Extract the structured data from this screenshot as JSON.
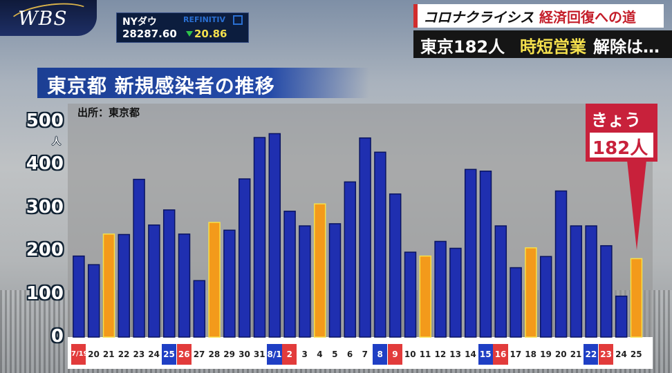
{
  "broadcast": {
    "logo": "WBS",
    "market_name": "NYダウ",
    "market_source": "REFINITIV",
    "market_value": "28287.60",
    "market_change": "20.86",
    "series_title": "コロナクライシス",
    "series_subtitle": "経済回復への道",
    "headline_part1": "東京182人",
    "headline_part2": "時短営業",
    "headline_part3": "解除は…"
  },
  "colors": {
    "bar_blue": "#1f2fb0",
    "bar_orange": "#f39a1b",
    "weekend_red": "#e23b3b",
    "weekend_blue": "#1f3fc4",
    "callout": "#c8213b"
  },
  "callout": {
    "line1": "きょう",
    "line2": "182人"
  },
  "chart_data": {
    "type": "bar",
    "title": "東京都 新規感染者の推移",
    "source": "出所：東京都",
    "ylabel_unit": "人",
    "ylim": [
      0,
      500
    ],
    "yticks": [
      "0",
      "100",
      "200",
      "300",
      "400",
      "500"
    ],
    "grid": false,
    "categories": [
      "7/19",
      "20",
      "21",
      "22",
      "23",
      "24",
      "25",
      "26",
      "27",
      "28",
      "29",
      "30",
      "31",
      "8/1",
      "2",
      "3",
      "4",
      "5",
      "6",
      "7",
      "8",
      "9",
      "10",
      "11",
      "12",
      "13",
      "14",
      "15",
      "16",
      "17",
      "18",
      "19",
      "20",
      "21",
      "22",
      "23",
      "24",
      "25"
    ],
    "values": [
      188,
      168,
      239,
      238,
      366,
      260,
      295,
      239,
      131,
      266,
      248,
      367,
      463,
      472,
      292,
      258,
      309,
      263,
      360,
      462,
      429,
      332,
      197,
      188,
      222,
      206,
      389,
      385,
      258,
      161,
      207,
      187,
      339,
      258,
      258,
      212,
      95,
      182
    ],
    "highlight": [
      false,
      false,
      true,
      false,
      false,
      false,
      false,
      false,
      false,
      true,
      false,
      false,
      false,
      false,
      false,
      false,
      true,
      false,
      false,
      false,
      false,
      false,
      false,
      true,
      false,
      false,
      false,
      false,
      false,
      false,
      true,
      false,
      false,
      false,
      false,
      false,
      false,
      true
    ],
    "date_style": [
      "red",
      "",
      "",
      "",
      "",
      "",
      "blue",
      "red",
      "",
      "",
      "",
      "",
      "",
      "blue",
      "red",
      "",
      "",
      "",
      "",
      "",
      "blue",
      "red",
      "",
      "",
      "",
      "",
      "",
      "blue",
      "red",
      "",
      "",
      "",
      "",
      "",
      "blue",
      "red",
      "",
      ""
    ]
  }
}
